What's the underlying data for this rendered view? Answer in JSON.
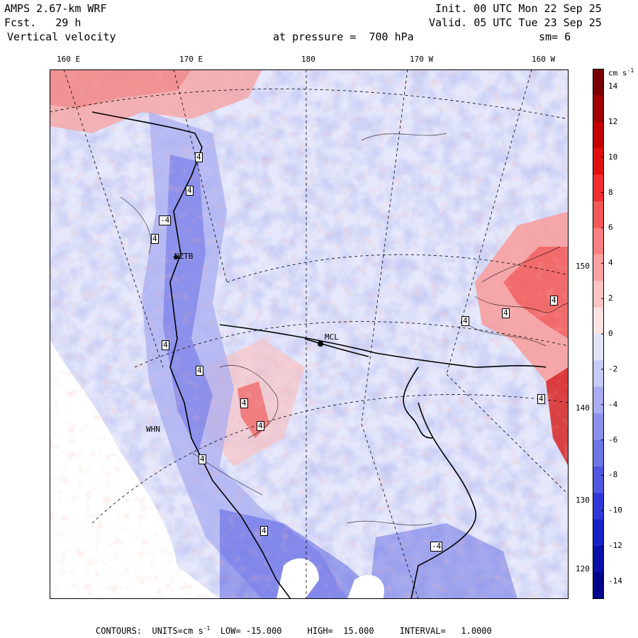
{
  "header": {
    "model": "AMPS 2.67-km WRF",
    "forecast": "Fcst.   29 h",
    "field": "Vertical velocity",
    "init": "Init. 00 UTC Mon 22 Sep 25",
    "valid": "Valid. 05 UTC Tue 23 Sep 25",
    "level": "at pressure =  700 hPa",
    "smoothing": "sm= 6"
  },
  "top_lon_labels": [
    "160 E",
    "170 E",
    "180",
    "170 W",
    "160 W"
  ],
  "right_lon_labels": [
    "150 W",
    "140 W",
    "130 W",
    "120 W"
  ],
  "stations": [
    "NZTB",
    "MCL",
    "WHN"
  ],
  "contour_labels": [
    "4",
    "4",
    "-4",
    "4",
    "4",
    "4",
    "4",
    "4",
    "4",
    "4",
    "4",
    "4",
    "4",
    "4",
    "-4"
  ],
  "colorbar": {
    "units": "cm s",
    "units_exp": "-1",
    "ticks": [
      "14",
      "12",
      "10",
      "8",
      "6",
      "4",
      "2",
      "0",
      "-2",
      "-4",
      "-6",
      "-8",
      "-10",
      "-12",
      "-14"
    ],
    "tick_values": [
      14,
      12,
      10,
      8,
      6,
      4,
      2,
      0,
      -2,
      -4,
      -6,
      -8,
      -10,
      -12,
      -14
    ],
    "range": [
      -15,
      15
    ],
    "colors_high": [
      "#7a0000",
      "#a00000",
      "#c40000",
      "#e01010",
      "#f03030",
      "#f45858",
      "#f78080",
      "#f9a2a2",
      "#fbc4c4",
      "#fde2e2"
    ],
    "colors_low": [
      "#e2e4fb",
      "#c6caf6",
      "#a9aef1",
      "#8c92ec",
      "#6e75e6",
      "#5058e0",
      "#3038d8",
      "#1820c8",
      "#0a10a8",
      "#00068a"
    ]
  },
  "footer": {
    "contours_label": "CONTOURS:",
    "units_label": "UNITS=cm s",
    "units_exp": "-1",
    "low": "LOW= -15.000",
    "high": "HIGH=  15.000",
    "interval": "INTERVAL=   1.0000"
  }
}
